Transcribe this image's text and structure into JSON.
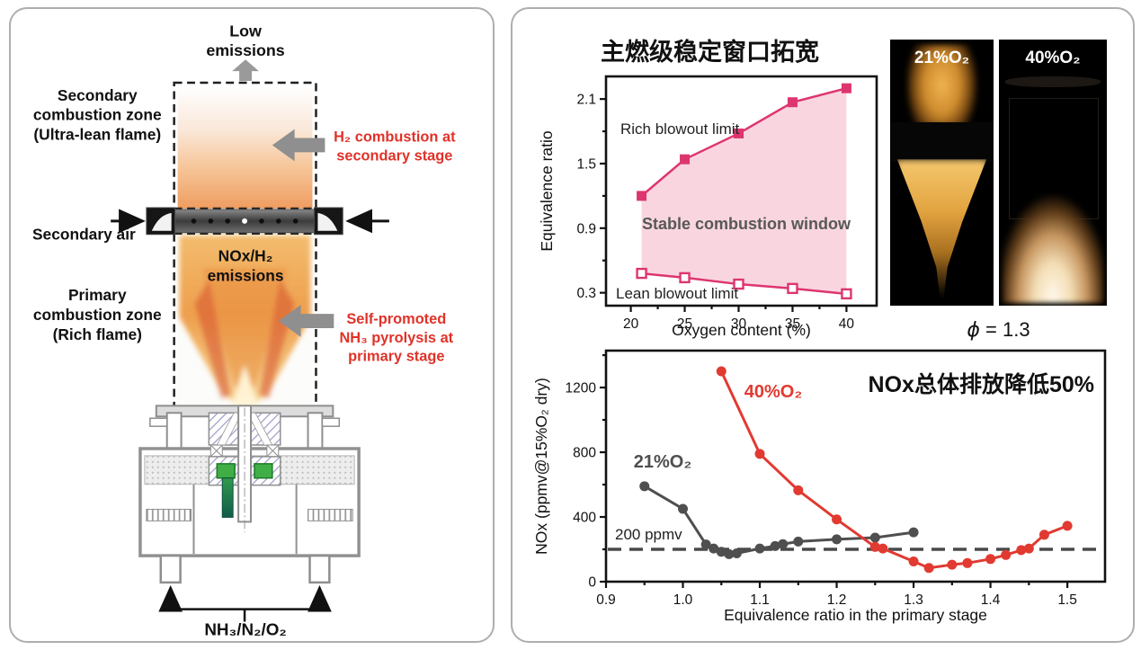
{
  "left_panel": {
    "low_emissions": [
      "Low",
      "emissions"
    ],
    "secondary_zone": [
      "Secondary",
      "combustion zone",
      "(Ultra-lean flame)"
    ],
    "h2_annotation": [
      "H₂ combustion at",
      "secondary stage"
    ],
    "secondary_air": "Secondary air",
    "nox_emissions": [
      "NOx/H₂",
      "emissions"
    ],
    "primary_zone": [
      "Primary",
      "combustion zone",
      "(Rich flame)"
    ],
    "pyrolysis_annotation": [
      "Self-promoted",
      "NH₃ pyrolysis at",
      "primary stage"
    ],
    "inlet_label": "NH₃/N₂/O₂",
    "annotation_color": "#e03228",
    "arrow_color": "#8f8f8f"
  },
  "right_panel": {
    "title": "主燃级稳定窗口拓宽",
    "photos": {
      "left_label": "21%O₂",
      "right_label": "40%O₂",
      "caption_symbol": "ϕ",
      "caption_rest": " = 1.3"
    }
  },
  "chart_data": [
    {
      "type": "line",
      "title": "主燃级稳定窗口拓宽",
      "xlabel": "Oxygen content (%)",
      "ylabel": "Equivalence ratio",
      "x": [
        21,
        25,
        30,
        35,
        40
      ],
      "xticks": [
        "20",
        "25",
        "30",
        "35",
        "40"
      ],
      "xticks_minor": [
        22.5,
        27.5,
        32.5,
        37.5
      ],
      "yticks": [
        "0.3",
        "0.9",
        "1.5",
        "2.1"
      ],
      "yticks_minor": [
        0.6,
        1.2,
        1.8
      ],
      "xlim": [
        17.7,
        42.8
      ],
      "ylim": [
        0.18,
        2.31
      ],
      "grid": false,
      "series": [
        {
          "name": "Rich blowout limit",
          "marker": "square",
          "color": "#dd3570",
          "values": [
            1.2,
            1.54,
            1.78,
            2.07,
            2.2
          ]
        },
        {
          "name": "Lean blowout limit",
          "marker": "square-open",
          "color": "#dd3570",
          "values": [
            0.48,
            0.44,
            0.38,
            0.34,
            0.29
          ]
        }
      ],
      "fill_between": {
        "label": "Stable combustion window",
        "color": "#f9d2dc"
      },
      "legend_position": "annotations-inside"
    },
    {
      "type": "line",
      "title": "",
      "annotation": "NOx总体排放降低50%",
      "xlabel": "Equivalence ratio in the primary stage",
      "ylabel": "NOx (ppmv@15%O₂ dry)",
      "xticks": [
        "0.9",
        "1.0",
        "1.1",
        "1.2",
        "1.3",
        "1.4",
        "1.5"
      ],
      "xticks_minor": [
        0.95,
        1.05,
        1.15,
        1.25,
        1.35,
        1.45
      ],
      "yticks": [
        "0",
        "400",
        "800",
        "1200"
      ],
      "yticks_minor": [
        200,
        600,
        1000,
        1400
      ],
      "xlim": [
        0.9,
        1.549
      ],
      "ylim": [
        0,
        1428
      ],
      "grid": false,
      "reference_line": {
        "y": 200,
        "label": "200 ppmv",
        "style": "dashed",
        "color": "#4a4a4a"
      },
      "series": [
        {
          "name": "21%O₂",
          "marker": "circle",
          "color": "#4f4f4f",
          "points": [
            [
              0.95,
              590
            ],
            [
              1.0,
              450
            ],
            [
              1.03,
              230
            ],
            [
              1.04,
              205
            ],
            [
              1.05,
              185
            ],
            [
              1.06,
              170
            ],
            [
              1.07,
              175
            ],
            [
              1.1,
              205
            ],
            [
              1.12,
              220
            ],
            [
              1.13,
              232
            ],
            [
              1.15,
              248
            ],
            [
              1.2,
              262
            ],
            [
              1.25,
              272
            ],
            [
              1.3,
              305
            ]
          ]
        },
        {
          "name": "40%O₂",
          "marker": "circle",
          "color": "#e13a31",
          "points": [
            [
              1.05,
              1300
            ],
            [
              1.1,
              790
            ],
            [
              1.15,
              565
            ],
            [
              1.2,
              385
            ],
            [
              1.25,
              215
            ],
            [
              1.26,
              205
            ],
            [
              1.3,
              125
            ],
            [
              1.32,
              85
            ],
            [
              1.35,
              105
            ],
            [
              1.37,
              115
            ],
            [
              1.4,
              140
            ],
            [
              1.42,
              165
            ],
            [
              1.44,
              195
            ],
            [
              1.45,
              205
            ],
            [
              1.47,
              290
            ],
            [
              1.5,
              345
            ]
          ]
        }
      ]
    }
  ]
}
